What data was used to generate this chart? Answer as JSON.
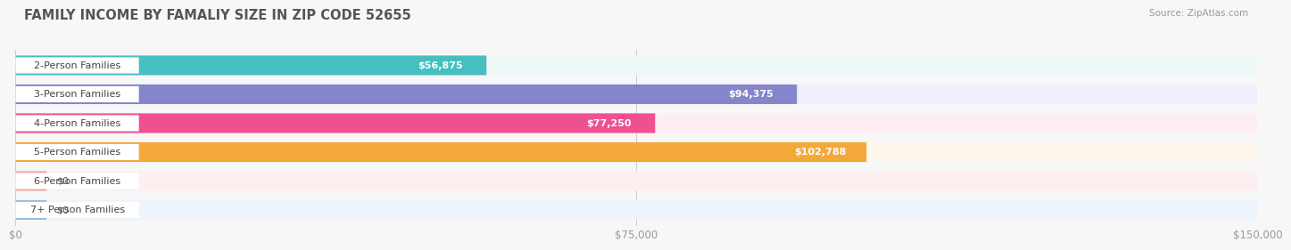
{
  "title": "FAMILY INCOME BY FAMALIY SIZE IN ZIP CODE 52655",
  "source": "Source: ZipAtlas.com",
  "categories": [
    "2-Person Families",
    "3-Person Families",
    "4-Person Families",
    "5-Person Families",
    "6-Person Families",
    "7+ Person Families"
  ],
  "values": [
    56875,
    94375,
    77250,
    102788,
    0,
    0
  ],
  "bar_colors": [
    "#45bfbf",
    "#8585cc",
    "#ee5090",
    "#f5a83a",
    "#f0a8a8",
    "#96bce0"
  ],
  "bar_bg_colors": [
    "#eef8f8",
    "#eeeefc",
    "#fdeef5",
    "#fef7ee",
    "#fdeef0",
    "#eef4fc"
  ],
  "value_label_colors": [
    "#45bfbf",
    "#8585cc",
    "#ee5090",
    "#f5a83a",
    "#f0a8a8",
    "#96bce0"
  ],
  "max_value": 150000,
  "tick_labels": [
    "$0",
    "$75,000",
    "$150,000"
  ],
  "tick_values": [
    0,
    75000,
    150000
  ],
  "background_color": "#f7f7f7",
  "title_fontsize": 10.5,
  "bar_height": 0.68,
  "label_fontsize": 8,
  "value_fontsize": 8
}
